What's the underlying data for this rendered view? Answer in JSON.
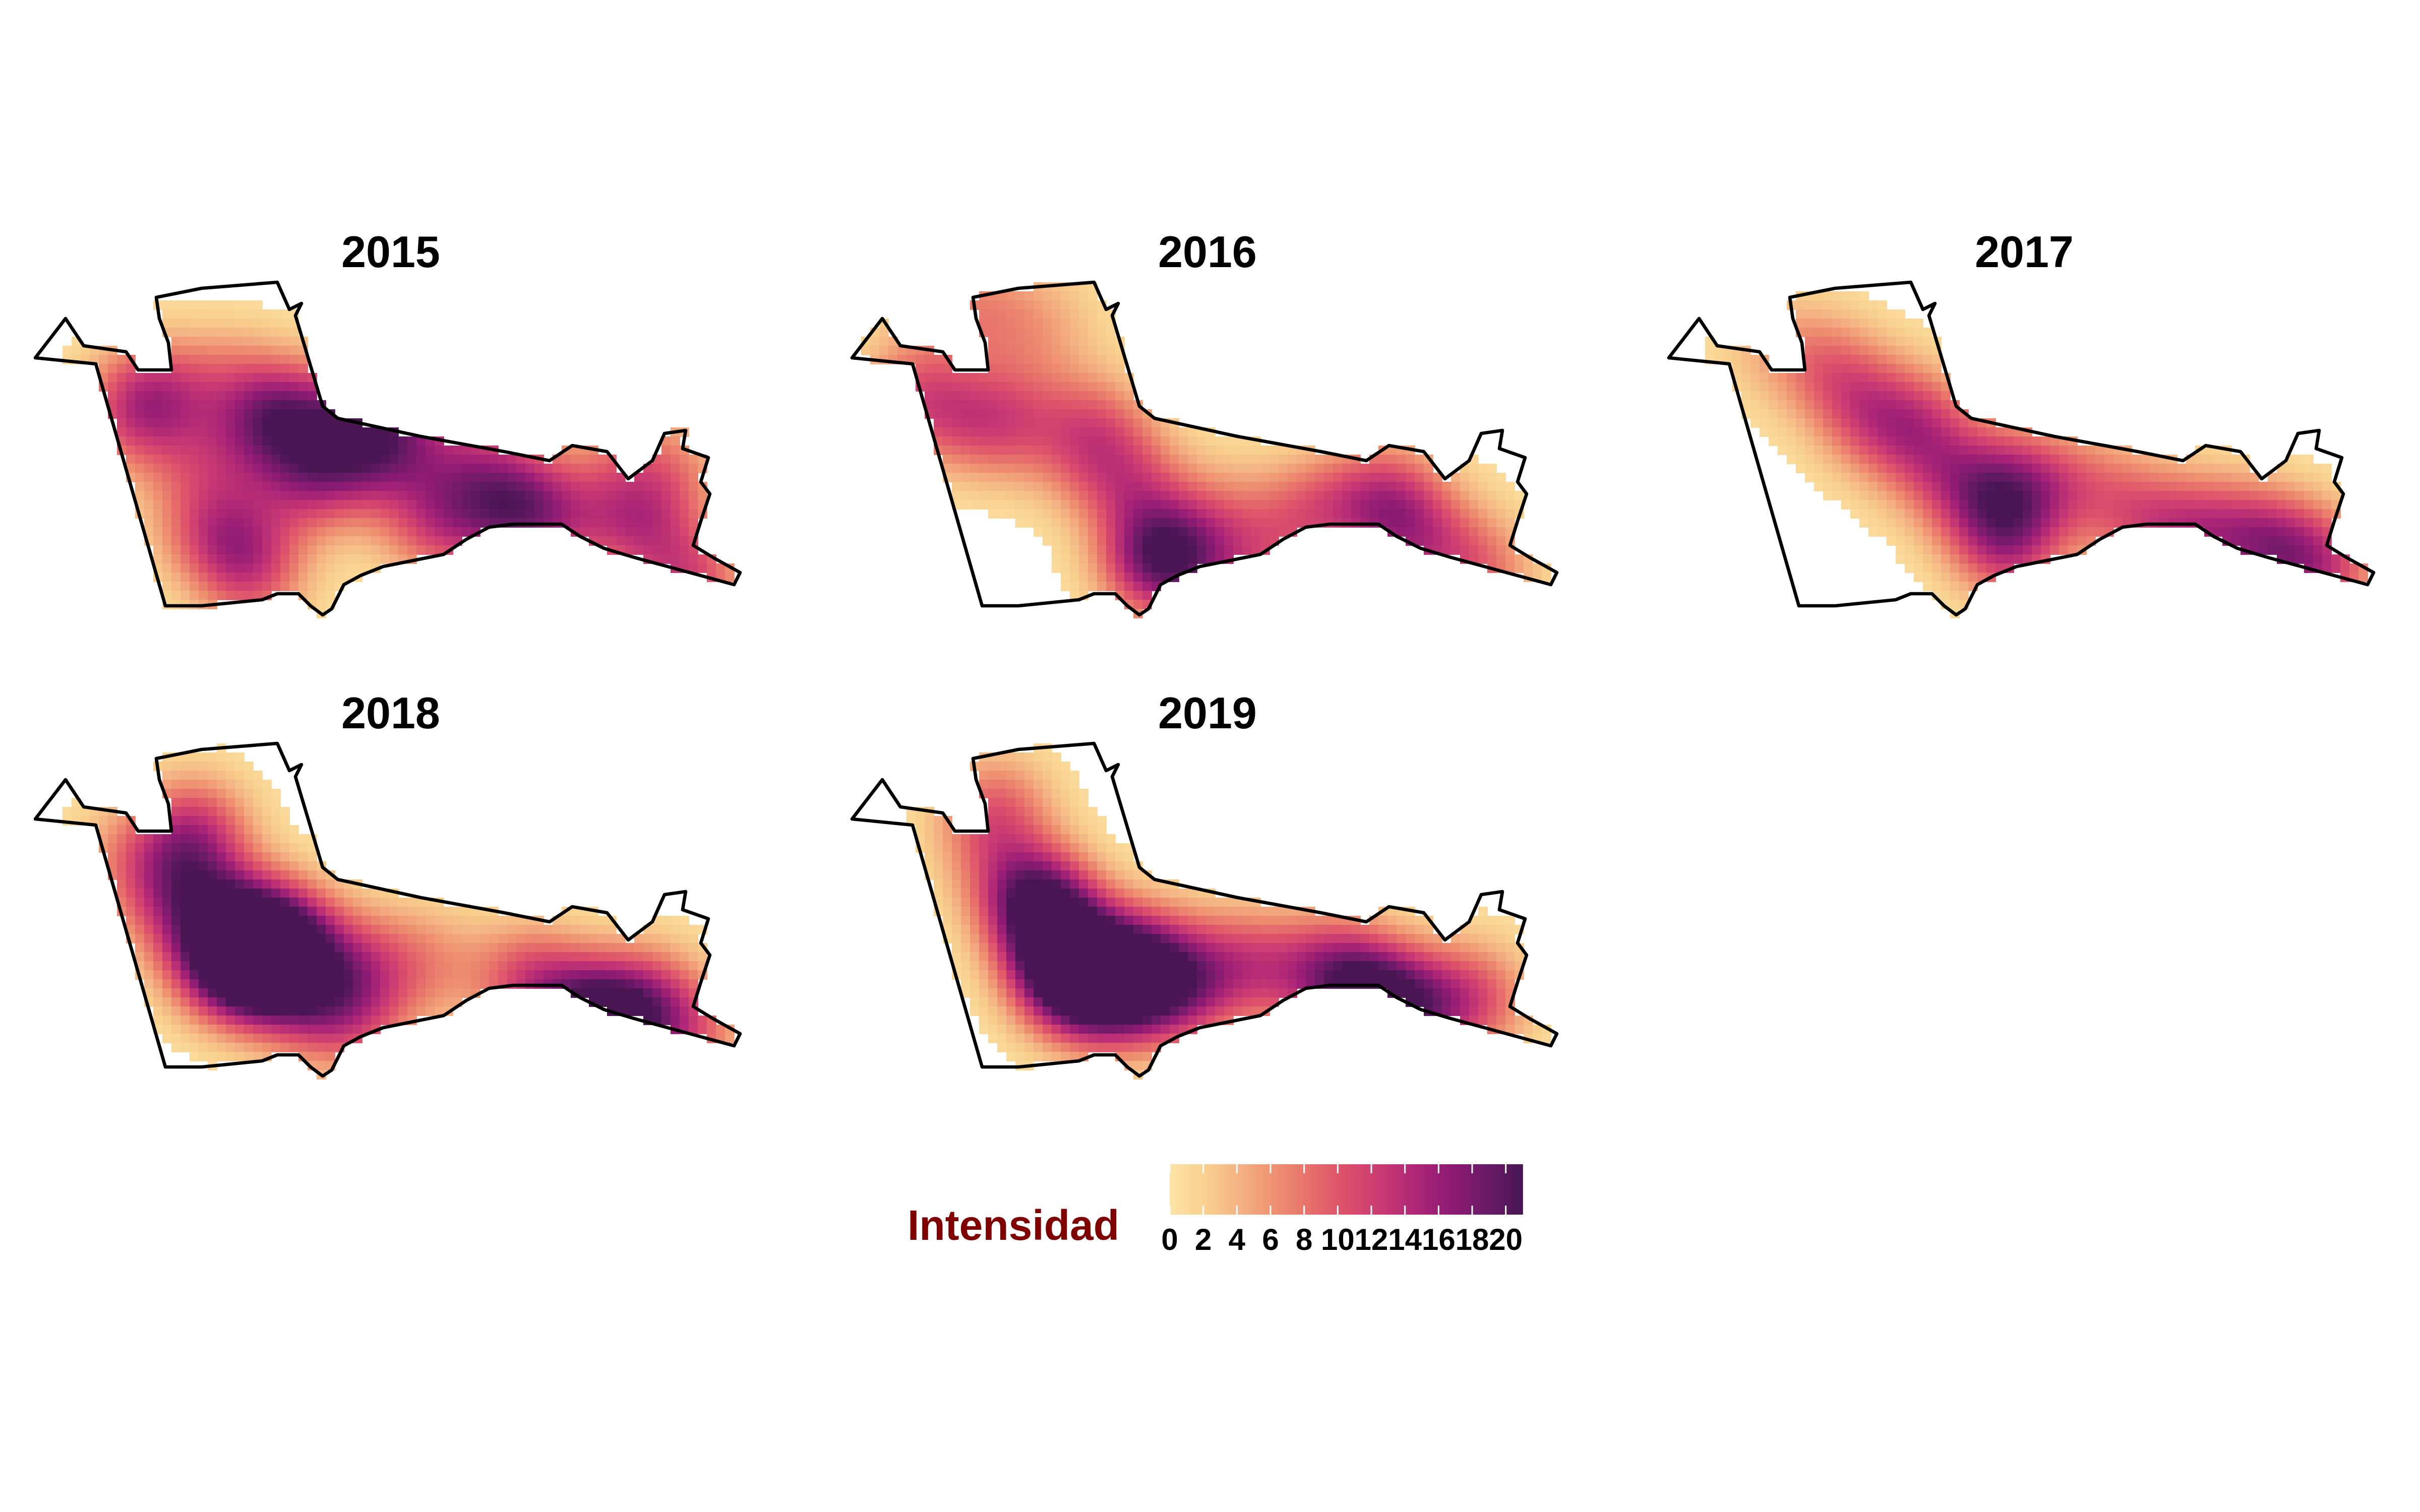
{
  "chart_data": {
    "type": "heatmap",
    "panels": [
      {
        "title": "2015",
        "hotspots": [
          [
            0.28,
            0.38,
            5
          ],
          [
            0.22,
            0.45,
            7
          ],
          [
            0.33,
            0.58,
            3
          ],
          [
            0.23,
            0.58,
            4
          ],
          [
            0.19,
            0.73,
            2
          ],
          [
            0.47,
            0.67,
            4
          ],
          [
            0.36,
            0.8,
            5
          ],
          [
            0.19,
            0.85,
            3
          ],
          [
            0.52,
            0.81,
            8
          ],
          [
            0.55,
            0.93,
            5
          ],
          [
            0.62,
            0.92,
            4
          ],
          [
            0.27,
            1.0,
            10
          ],
          [
            0.27,
            1.07,
            5
          ],
          [
            0.4,
            1.15,
            9
          ],
          [
            0.32,
            1.27,
            6
          ],
          [
            0.25,
            1.33,
            5
          ],
          [
            0.37,
            1.4,
            5
          ],
          [
            0.31,
            1.5,
            8
          ],
          [
            0.24,
            1.56,
            4
          ],
          [
            0.47,
            1.63,
            4
          ],
          [
            0.5,
            1.72,
            5
          ],
          [
            0.37,
            1.72,
            4
          ],
          [
            0.46,
            1.87,
            5
          ],
          [
            0.34,
            1.89,
            5
          ],
          [
            0.44,
            2.05,
            11
          ],
          [
            0.5,
            2.12,
            4
          ],
          [
            0.47,
            2.31,
            5
          ],
          [
            0.48,
            2.55,
            9
          ],
          [
            0.34,
            2.47,
            4
          ],
          [
            0.38,
            2.69,
            5
          ],
          [
            0.6,
            2.72,
            7
          ],
          [
            0.6,
            2.81,
            4
          ]
        ]
      },
      {
        "title": "2016",
        "hotspots": [
          [
            0.04,
            0.37,
            3
          ],
          [
            0.06,
            0.55,
            4
          ],
          [
            0.07,
            0.72,
            2
          ],
          [
            0.08,
            0.88,
            2
          ],
          [
            0.22,
            0.24,
            7
          ],
          [
            0.27,
            0.37,
            4
          ],
          [
            0.26,
            0.5,
            3
          ],
          [
            0.29,
            0.63,
            7
          ],
          [
            0.19,
            0.75,
            2
          ],
          [
            0.3,
            0.88,
            3
          ],
          [
            0.28,
            1.03,
            5
          ],
          [
            0.38,
            1.0,
            3
          ],
          [
            0.35,
            1.12,
            4
          ],
          [
            0.43,
            1.22,
            6
          ],
          [
            0.53,
            1.25,
            5
          ],
          [
            0.57,
            1.29,
            11
          ],
          [
            0.55,
            1.45,
            7
          ],
          [
            0.46,
            1.55,
            4
          ],
          [
            0.59,
            1.72,
            6
          ],
          [
            0.47,
            1.85,
            5
          ],
          [
            0.45,
            2.04,
            6
          ],
          [
            0.42,
            2.25,
            6
          ],
          [
            0.47,
            2.32,
            7
          ],
          [
            0.55,
            2.36,
            5
          ],
          [
            0.54,
            2.58,
            5
          ],
          [
            0.61,
            2.68,
            5
          ]
        ]
      },
      {
        "title": "2017",
        "hotspots": [
          [
            0.12,
            0.38,
            2
          ],
          [
            0.14,
            0.55,
            3
          ],
          [
            0.17,
            0.68,
            4
          ],
          [
            0.23,
            0.8,
            6
          ],
          [
            0.3,
            0.88,
            5
          ],
          [
            0.28,
            1.07,
            8
          ],
          [
            0.38,
            1.14,
            6
          ],
          [
            0.44,
            1.31,
            7
          ],
          [
            0.39,
            1.43,
            7
          ],
          [
            0.53,
            1.43,
            11
          ],
          [
            0.42,
            1.57,
            5
          ],
          [
            0.4,
            1.74,
            4
          ],
          [
            0.45,
            1.95,
            6
          ],
          [
            0.52,
            2.1,
            6
          ],
          [
            0.49,
            2.27,
            7
          ],
          [
            0.52,
            2.49,
            10
          ],
          [
            0.55,
            2.68,
            8
          ],
          [
            0.59,
            2.79,
            6
          ]
        ]
      },
      {
        "title": "2018",
        "hotspots": [
          [
            0.22,
            0.37,
            4
          ],
          [
            0.24,
            0.58,
            3
          ],
          [
            0.17,
            0.64,
            2
          ],
          [
            0.17,
            0.68,
            8
          ],
          [
            0.27,
            0.64,
            4
          ],
          [
            0.32,
            0.52,
            5
          ],
          [
            0.32,
            0.78,
            4
          ],
          [
            0.36,
            0.77,
            7
          ],
          [
            0.43,
            0.76,
            9
          ],
          [
            0.46,
            0.83,
            6
          ],
          [
            0.44,
            0.95,
            14
          ],
          [
            0.37,
            1.0,
            9
          ],
          [
            0.47,
            1.02,
            6
          ],
          [
            0.4,
            1.09,
            7
          ],
          [
            0.52,
            1.14,
            4
          ],
          [
            0.45,
            1.31,
            6
          ],
          [
            0.54,
            1.31,
            6
          ],
          [
            0.57,
            1.23,
            2
          ],
          [
            0.55,
            1.49,
            2
          ],
          [
            0.43,
            1.48,
            4
          ],
          [
            0.44,
            1.69,
            4
          ],
          [
            0.47,
            2.05,
            7
          ],
          [
            0.5,
            2.19,
            6
          ],
          [
            0.56,
            2.36,
            15
          ],
          [
            0.56,
            2.47,
            8
          ],
          [
            0.5,
            2.58,
            6
          ],
          [
            0.56,
            2.71,
            5
          ],
          [
            0.6,
            2.79,
            4
          ]
        ]
      },
      {
        "title": "2019",
        "hotspots": [
          [
            0.16,
            0.55,
            5
          ],
          [
            0.12,
            0.63,
            5
          ],
          [
            0.27,
            0.64,
            3
          ],
          [
            0.3,
            0.75,
            10
          ],
          [
            0.35,
            0.84,
            12
          ],
          [
            0.42,
            0.87,
            8
          ],
          [
            0.47,
            0.88,
            7
          ],
          [
            0.46,
            0.96,
            11
          ],
          [
            0.51,
            1.04,
            9
          ],
          [
            0.46,
            1.15,
            7
          ],
          [
            0.42,
            1.23,
            8
          ],
          [
            0.5,
            1.24,
            7
          ],
          [
            0.5,
            1.38,
            6
          ],
          [
            0.47,
            1.48,
            5
          ],
          [
            0.43,
            1.61,
            5
          ],
          [
            0.46,
            1.79,
            6
          ],
          [
            0.44,
            1.98,
            5
          ],
          [
            0.47,
            2.09,
            7
          ],
          [
            0.51,
            2.18,
            11
          ],
          [
            0.53,
            2.32,
            10
          ],
          [
            0.54,
            2.45,
            4
          ],
          [
            0.5,
            2.59,
            5
          ],
          [
            0.52,
            2.67,
            4
          ]
        ]
      }
    ],
    "legend": {
      "title": "Intensidad",
      "ticks": [
        "0",
        "2",
        "4",
        "6",
        "8",
        "10",
        "12",
        "14",
        "16",
        "18",
        "20"
      ],
      "min": 0,
      "max": 21,
      "colors": [
        "#fce3a5",
        "#f8cf8d",
        "#f4b183",
        "#ee8f70",
        "#e66e6b",
        "#dc4f6b",
        "#c83a73",
        "#ae2676",
        "#8e1b73",
        "#6b1a68",
        "#4a1553"
      ]
    },
    "colors": {
      "title": "#800000",
      "outline": "#000000",
      "tick_text": "#000000"
    }
  }
}
